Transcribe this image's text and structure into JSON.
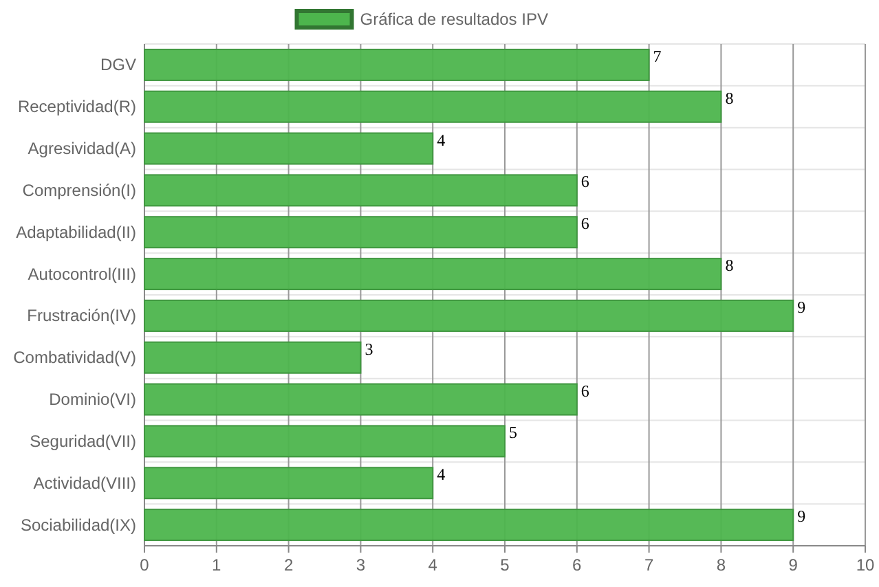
{
  "chart_data": {
    "type": "bar",
    "orientation": "horizontal",
    "categories": [
      "DGV",
      "Receptividad(R)",
      "Agresividad(A)",
      "Comprensión(I)",
      "Adaptabilidad(II)",
      "Autocontrol(III)",
      "Frustración(IV)",
      "Combatividad(V)",
      "Dominio(VI)",
      "Seguridad(VII)",
      "Actividad(VIII)",
      "Sociabilidad(IX)"
    ],
    "series": [
      {
        "name": "Gráfica de resultados IPV",
        "color": "#4db54d",
        "values": [
          7,
          8,
          4,
          6,
          6,
          8,
          9,
          3,
          6,
          5,
          4,
          9
        ]
      }
    ],
    "xlim": [
      0,
      10
    ],
    "xticks": [
      0,
      1,
      2,
      3,
      4,
      5,
      6,
      7,
      8,
      9,
      10
    ],
    "grid": true,
    "legend": "top",
    "data_labels": true
  }
}
